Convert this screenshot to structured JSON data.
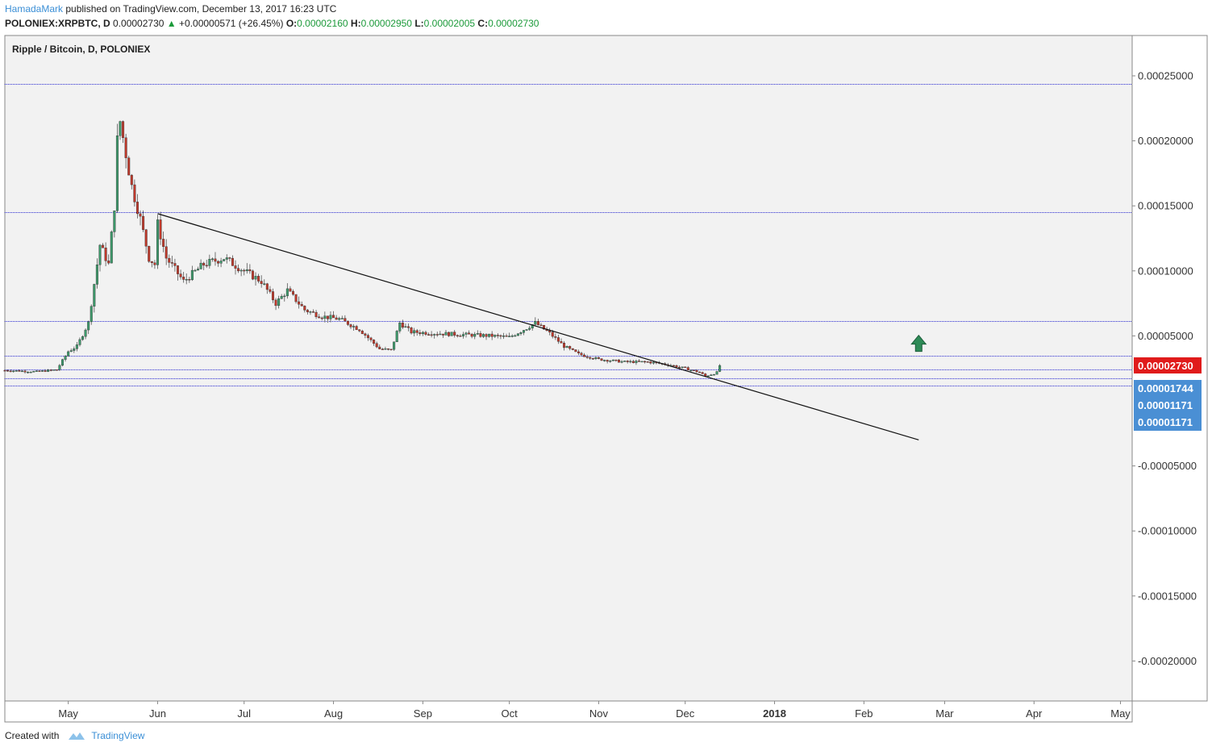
{
  "header": {
    "author": "HamadaMark",
    "published_text": " published on TradingView.com, December 13, 2017 16:23 UTC",
    "symbol": "POLONIEX:XRPBTC, D",
    "last": "0.00002730",
    "change": "+0.00000571 (+26.45%)",
    "o_label": "O:",
    "o_value": "0.00002160",
    "h_label": "H:",
    "h_value": "0.00002950",
    "l_label": "L:",
    "l_value": "0.00002005",
    "c_label": "C:",
    "c_value": "0.00002730"
  },
  "footer": {
    "created_with": "Created with",
    "brand": "TradingView"
  },
  "colors": {
    "up": "#3d9a6b",
    "down": "#c0392b",
    "hline": "#2a2ad0",
    "trend": "#111111",
    "price_badge": "#e01b1b",
    "level_badge": "#4a8fd4",
    "arrow": "#2e8b57",
    "bg": "#f2f2f2"
  },
  "chart_data": {
    "type": "candlestick",
    "title": "Ripple / Bitcoin, D, POLONIEX",
    "y_ticks": [
      "0.00025000",
      "0.00020000",
      "0.00015000",
      "0.00010000",
      "0.00005000",
      "-0.00005000",
      "-0.00010000",
      "-0.00015000",
      "-0.00020000"
    ],
    "y_tick_values": [
      0.00025,
      0.0002,
      0.00015,
      0.0001,
      5e-05,
      -5e-05,
      -0.0001,
      -0.00015,
      -0.0002
    ],
    "ylim": [
      -0.00023,
      0.00027
    ],
    "x_start": "2017-04-09",
    "x_end": "2018-05-15",
    "x_ticks": [
      {
        "label": "May",
        "date": "2017-05-01",
        "bold": false
      },
      {
        "label": "Jun",
        "date": "2017-06-01",
        "bold": false
      },
      {
        "label": "Jul",
        "date": "2017-07-01",
        "bold": false
      },
      {
        "label": "Aug",
        "date": "2017-08-01",
        "bold": false
      },
      {
        "label": "Sep",
        "date": "2017-09-01",
        "bold": false
      },
      {
        "label": "Oct",
        "date": "2017-10-01",
        "bold": false
      },
      {
        "label": "Nov",
        "date": "2017-11-01",
        "bold": false
      },
      {
        "label": "Dec",
        "date": "2017-12-01",
        "bold": false
      },
      {
        "label": "2018",
        "date": "2018-01-01",
        "bold": true
      },
      {
        "label": "Feb",
        "date": "2018-02-01",
        "bold": false
      },
      {
        "label": "Mar",
        "date": "2018-03-01",
        "bold": false
      },
      {
        "label": "Apr",
        "date": "2018-04-01",
        "bold": false
      },
      {
        "label": "May",
        "date": "2018-05-01",
        "bold": false
      }
    ],
    "horizontal_levels": [
      0.000244,
      0.000145,
      6.15e-05,
      3.45e-05,
      2.45e-05,
      1.744e-05,
      1.171e-05
    ],
    "trendline": {
      "from": {
        "date": "2017-06-01",
        "value": 0.000144
      },
      "to": {
        "date": "2018-02-20",
        "value": -3e-05
      }
    },
    "last_price": {
      "label": "0.00002730",
      "value": 2.73e-05
    },
    "level_labels": [
      {
        "label": "0.00001744",
        "value": 1.744e-05
      },
      {
        "label": "0.00001171",
        "value": 1.171e-05
      },
      {
        "label": "0.00001171",
        "value": 1.171e-05
      }
    ],
    "annotation_arrow": {
      "date": "2018-02-20",
      "value": 4.3e-05,
      "direction": "up"
    },
    "anchors": [
      [
        "2017-04-09",
        2.35e-05
      ],
      [
        "2017-04-20",
        2.25e-05
      ],
      [
        "2017-04-27",
        2.4e-05
      ],
      [
        "2017-05-01",
        3.8e-05
      ],
      [
        "2017-05-04",
        4.2e-05
      ],
      [
        "2017-05-08",
        6e-05
      ],
      [
        "2017-05-10",
        9e-05
      ],
      [
        "2017-05-12",
        0.00012
      ],
      [
        "2017-05-15",
        0.000105
      ],
      [
        "2017-05-17",
        0.00015
      ],
      [
        "2017-05-18",
        0.0002
      ],
      [
        "2017-05-19",
        0.000215
      ],
      [
        "2017-05-21",
        0.00019
      ],
      [
        "2017-05-23",
        0.000165
      ],
      [
        "2017-05-26",
        0.00014
      ],
      [
        "2017-05-29",
        0.00011
      ],
      [
        "2017-05-31",
        0.000105
      ],
      [
        "2017-06-01",
        0.000136
      ],
      [
        "2017-06-04",
        0.00011
      ],
      [
        "2017-06-10",
        9.2e-05
      ],
      [
        "2017-06-17",
        0.000105
      ],
      [
        "2017-06-24",
        0.00011
      ],
      [
        "2017-07-01",
        0.0001
      ],
      [
        "2017-07-07",
        9.2e-05
      ],
      [
        "2017-07-12",
        7.5e-05
      ],
      [
        "2017-07-16",
        8.5e-05
      ],
      [
        "2017-07-22",
        7e-05
      ],
      [
        "2017-07-28",
        6.5e-05
      ],
      [
        "2017-08-03",
        6.3e-05
      ],
      [
        "2017-08-10",
        5.5e-05
      ],
      [
        "2017-08-17",
        4e-05
      ],
      [
        "2017-08-21",
        3.9e-05
      ],
      [
        "2017-08-24",
        6e-05
      ],
      [
        "2017-08-28",
        5.3e-05
      ],
      [
        "2017-09-05",
        5.2e-05
      ],
      [
        "2017-09-15",
        5.1e-05
      ],
      [
        "2017-09-25",
        5e-05
      ],
      [
        "2017-10-01",
        4.9e-05
      ],
      [
        "2017-10-07",
        5.6e-05
      ],
      [
        "2017-10-10",
        6e-05
      ],
      [
        "2017-10-15",
        5.2e-05
      ],
      [
        "2017-10-20",
        4.2e-05
      ],
      [
        "2017-10-25",
        3.6e-05
      ],
      [
        "2017-11-01",
        3.2e-05
      ],
      [
        "2017-11-10",
        3e-05
      ],
      [
        "2017-11-18",
        3e-05
      ],
      [
        "2017-11-25",
        2.8e-05
      ],
      [
        "2017-12-01",
        2.5e-05
      ],
      [
        "2017-12-06",
        2.2e-05
      ],
      [
        "2017-12-08",
        1.9e-05
      ],
      [
        "2017-12-11",
        2.1e-05
      ],
      [
        "2017-12-12",
        2.2e-05
      ],
      [
        "2017-12-13",
        2.73e-05
      ]
    ]
  }
}
